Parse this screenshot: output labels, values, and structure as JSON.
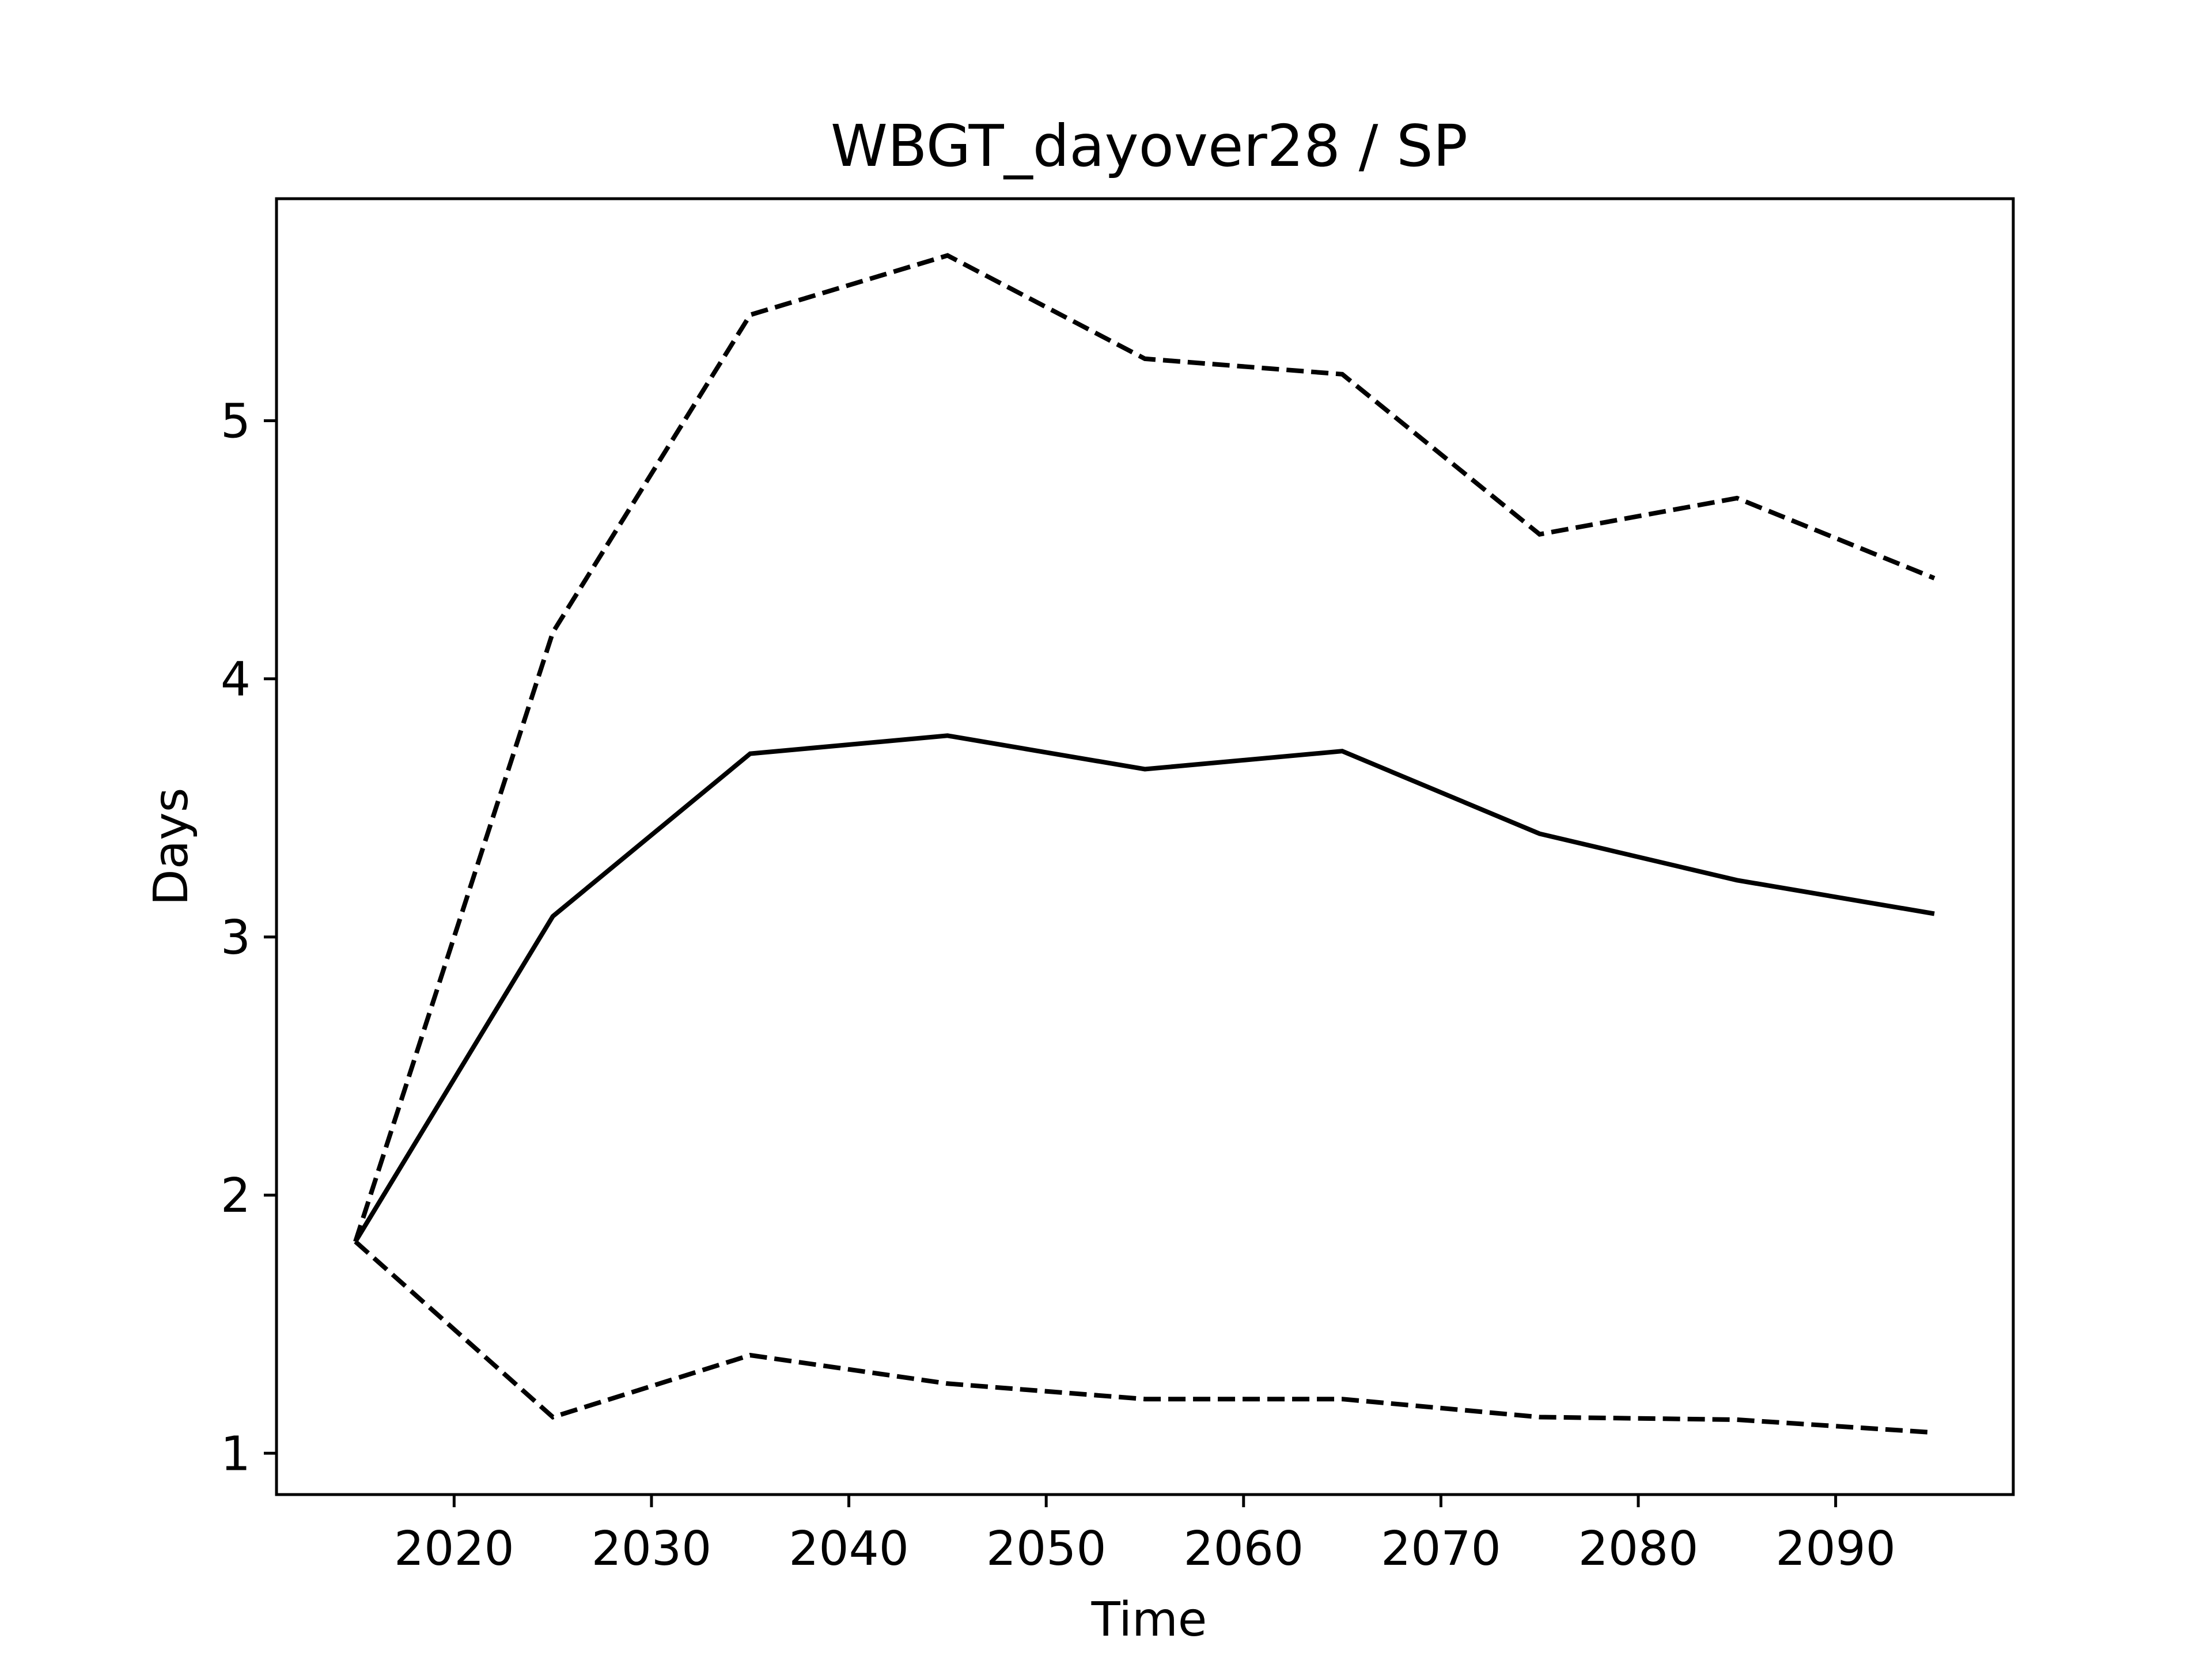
{
  "chart_data": {
    "type": "line",
    "title": "WBGT_dayover28 / SP",
    "xlabel": "Time",
    "ylabel": "Days",
    "x": [
      2015,
      2025,
      2035,
      2045,
      2055,
      2065,
      2075,
      2085,
      2095
    ],
    "series": [
      {
        "style": "solid",
        "values": [
          1.82,
          3.08,
          3.71,
          3.78,
          3.65,
          3.72,
          3.4,
          3.22,
          3.09
        ]
      },
      {
        "style": "dashed",
        "values": [
          1.82,
          4.18,
          5.41,
          5.64,
          5.24,
          5.18,
          4.56,
          4.7,
          4.39
        ]
      },
      {
        "style": "dashed",
        "values": [
          1.82,
          1.14,
          1.38,
          1.27,
          1.21,
          1.21,
          1.14,
          1.13,
          1.08
        ]
      }
    ],
    "xlim": [
      2011,
      2099
    ],
    "ylim": [
      0.84,
      5.86
    ],
    "xticks": [
      "2020",
      "2030",
      "2040",
      "2050",
      "2060",
      "2070",
      "2080",
      "2090"
    ],
    "yticks": [
      "1",
      "2",
      "3",
      "4",
      "5"
    ],
    "grid": false,
    "legend": "none",
    "colors": {
      "line": "#000000",
      "axes": "#000000",
      "background": "#ffffff"
    }
  }
}
